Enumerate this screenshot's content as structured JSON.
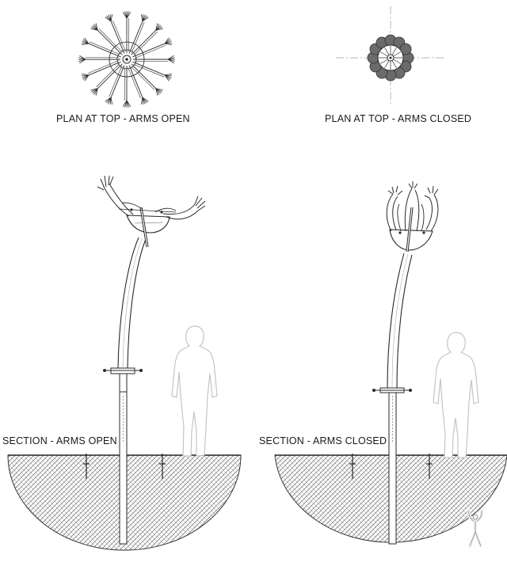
{
  "labels": {
    "plan_open": "PLAN AT TOP - ARMS OPEN",
    "plan_closed": "PLAN AT TOP - ARMS CLOSED",
    "section_open": "SECTION - ARMS OPEN",
    "section_closed": "SECTION - ARMS CLOSED"
  },
  "colors": {
    "ink": "#2a2a2a",
    "figure_outline": "#c4c4c4",
    "earth_hatch": "#6a6a6a",
    "closed_pod_fill": "#6b6b6b"
  },
  "icons": [
    "dancing-figure-logo-icon"
  ]
}
